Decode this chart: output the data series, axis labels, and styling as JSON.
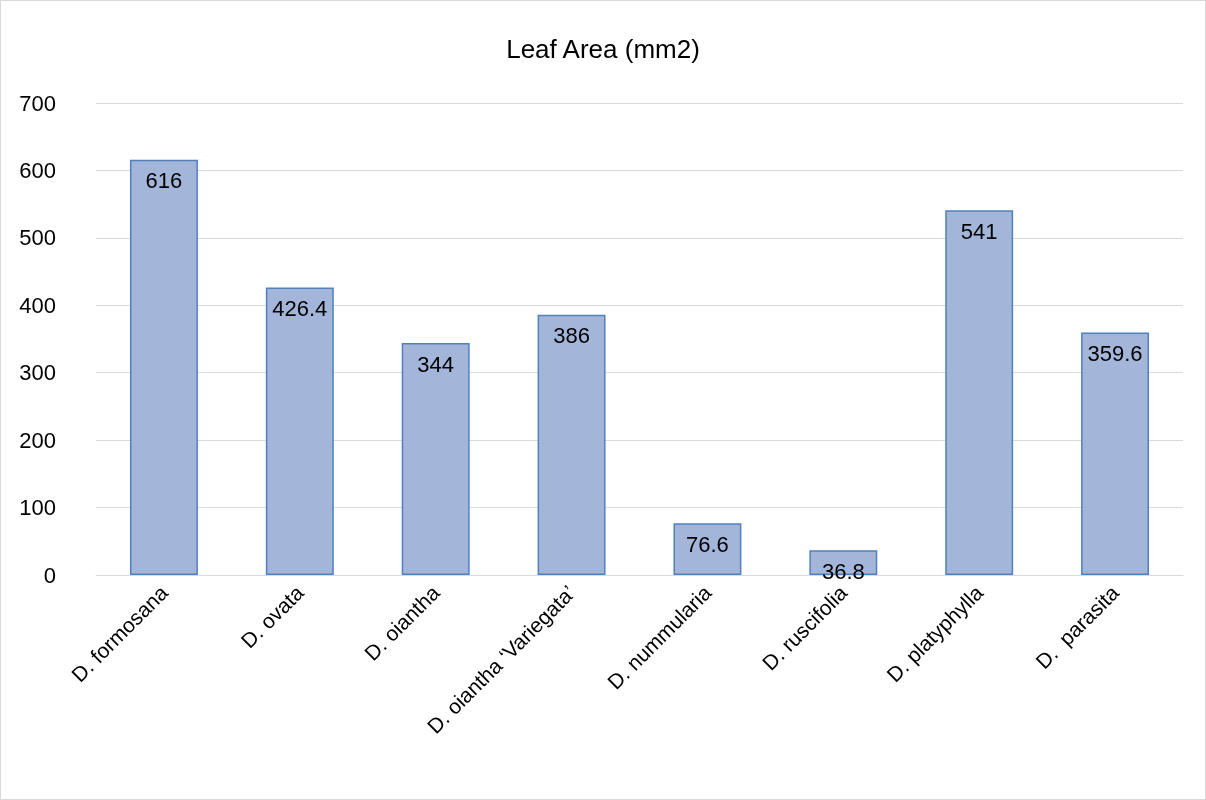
{
  "chart_data": {
    "type": "bar",
    "title": "Leaf Area (mm2)",
    "categories": [
      "D. formosana",
      "D. ovata",
      "D. oiantha",
      "D. oiantha ‘Variegata’",
      "D. nummularia",
      "D. ruscifolia",
      "D. platyphylla",
      "D.  parasita"
    ],
    "values": [
      616,
      426.4,
      344,
      386,
      76.6,
      36.8,
      541,
      359.6
    ],
    "color": "#a3b6da",
    "ylim": [
      0,
      700
    ],
    "yticks": [
      0,
      100,
      200,
      300,
      400,
      500,
      600,
      700
    ],
    "grid": "y",
    "data_labels": true
  }
}
